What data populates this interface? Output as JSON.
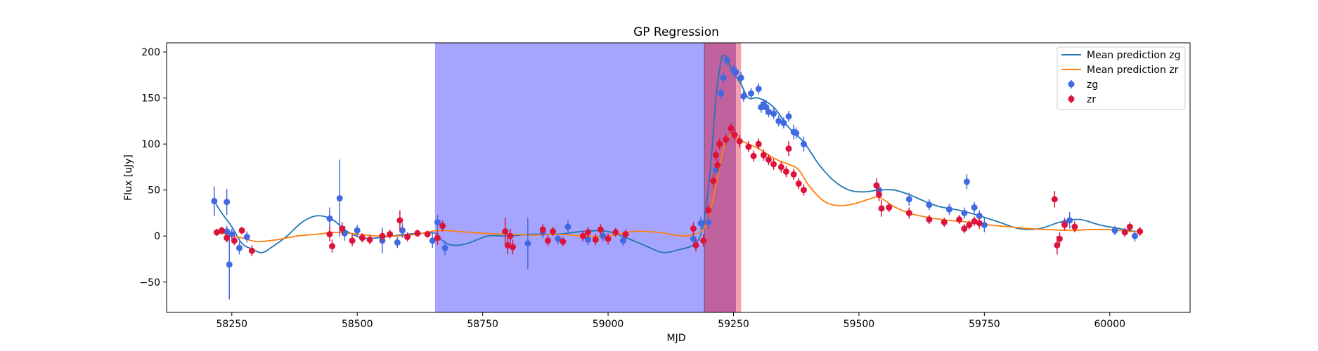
{
  "chart_data": {
    "type": "scatter",
    "title": "GP Regression",
    "xlabel": "MJD",
    "ylabel": "Flux [uJy]",
    "xlim": [
      58120,
      60160
    ],
    "ylim": [
      -83,
      210
    ],
    "xticks": [
      58250,
      58500,
      58750,
      59000,
      59250,
      59500,
      59750,
      60000
    ],
    "yticks": [
      -50,
      0,
      50,
      100,
      150,
      200
    ],
    "grid": false,
    "legend_position": "top-right",
    "legend": [
      "Mean prediction zg",
      "Mean prediction zr",
      "zg",
      "zr"
    ],
    "colors": {
      "zg_line": "#1f77b4",
      "zr_line": "#ff7f0e",
      "zg_points": "#4169e1",
      "zr_points": "#dc143c",
      "band_blue": "#a5a5ff",
      "band_red": "#c0629e",
      "band_pink": "#f4a0b0"
    },
    "shaded_regions": [
      {
        "x0": 58655,
        "x1": 59192,
        "color": "#a5a5ff"
      },
      {
        "x0": 59192,
        "x1": 59255,
        "color": "#c0629e"
      },
      {
        "x0": 59255,
        "x1": 59265,
        "color": "#f4a0b0"
      }
    ],
    "series": [
      {
        "name": "Mean prediction zg",
        "kind": "line",
        "x": [
          58215,
          58230,
          58250,
          58270,
          58290,
          58310,
          58330,
          58360,
          58390,
          58420,
          58450,
          58480,
          58510,
          58540,
          58570,
          58600,
          58630,
          58655,
          58670,
          58690,
          58720,
          58760,
          58800,
          58850,
          58900,
          58950,
          59000,
          59050,
          59080,
          59110,
          59140,
          59170,
          59185,
          59195,
          59205,
          59215,
          59225,
          59232,
          59240,
          59250,
          59265,
          59280,
          59300,
          59330,
          59360,
          59390,
          59420,
          59450,
          59480,
          59510,
          59540,
          59570,
          59600,
          59630,
          59660,
          59700,
          59740,
          59780,
          59820,
          59860,
          59900,
          59940,
          59980,
          60020,
          60050
        ],
        "y": [
          38,
          25,
          10,
          -8,
          -14,
          -18,
          -12,
          0,
          15,
          22,
          18,
          5,
          -2,
          -2,
          0,
          2,
          3,
          3,
          -5,
          -10,
          -8,
          0,
          0,
          2,
          2,
          5,
          5,
          -5,
          -12,
          -18,
          -15,
          -10,
          2,
          30,
          80,
          150,
          190,
          196,
          188,
          178,
          165,
          150,
          150,
          140,
          118,
          102,
          78,
          60,
          50,
          48,
          50,
          50,
          45,
          38,
          32,
          28,
          22,
          15,
          8,
          8,
          15,
          18,
          12,
          8,
          5
        ]
      },
      {
        "name": "Mean prediction zr",
        "kind": "line",
        "x": [
          58215,
          58240,
          58270,
          58300,
          58340,
          58380,
          58420,
          58460,
          58500,
          58540,
          58580,
          58620,
          58660,
          58700,
          58750,
          58800,
          58850,
          58900,
          58950,
          59000,
          59050,
          59100,
          59150,
          59185,
          59200,
          59215,
          59230,
          59245,
          59260,
          59280,
          59300,
          59320,
          59340,
          59360,
          59380,
          59400,
          59430,
          59460,
          59490,
          59520,
          59540,
          59570,
          59600,
          59640,
          59680,
          59720,
          59760,
          59800,
          59840,
          59880,
          59920,
          59960,
          60000,
          60040,
          60060
        ],
        "y": [
          4,
          2,
          -2,
          -6,
          -4,
          0,
          2,
          4,
          2,
          0,
          0,
          2,
          6,
          5,
          3,
          2,
          1,
          2,
          0,
          0,
          5,
          4,
          0,
          5,
          20,
          55,
          95,
          110,
          105,
          100,
          95,
          88,
          82,
          78,
          72,
          55,
          38,
          33,
          35,
          40,
          42,
          32,
          25,
          20,
          17,
          15,
          12,
          10,
          8,
          7,
          6,
          7,
          7,
          5,
          5
        ]
      },
      {
        "name": "zg",
        "kind": "errorbar",
        "points": [
          [
            58215,
            38,
            16
          ],
          [
            58240,
            37,
            14
          ],
          [
            58245,
            -31,
            38
          ],
          [
            58240,
            5,
            6
          ],
          [
            58250,
            2,
            6
          ],
          [
            58265,
            -13,
            7
          ],
          [
            58280,
            -1,
            6
          ],
          [
            58445,
            19,
            12
          ],
          [
            58465,
            41,
            42
          ],
          [
            58475,
            3,
            8
          ],
          [
            58500,
            6,
            6
          ],
          [
            58550,
            -5,
            14
          ],
          [
            58580,
            -7,
            6
          ],
          [
            58590,
            6,
            8
          ],
          [
            58650,
            -5,
            8
          ],
          [
            58660,
            15,
            8
          ],
          [
            58675,
            -13,
            8
          ],
          [
            58840,
            -8,
            28
          ],
          [
            58870,
            4,
            6
          ],
          [
            58900,
            -3,
            6
          ],
          [
            58920,
            10,
            7
          ],
          [
            58960,
            -4,
            6
          ],
          [
            58990,
            0,
            6
          ],
          [
            59030,
            -5,
            6
          ],
          [
            59170,
            -3,
            7
          ],
          [
            59185,
            14,
            7
          ],
          [
            59200,
            15,
            7
          ],
          [
            59215,
            72,
            6
          ],
          [
            59225,
            155,
            6
          ],
          [
            59230,
            172,
            6
          ],
          [
            59237,
            191,
            6
          ],
          [
            59250,
            180,
            6
          ],
          [
            59255,
            178,
            6
          ],
          [
            59265,
            172,
            6
          ],
          [
            59270,
            152,
            6
          ],
          [
            59285,
            155,
            6
          ],
          [
            59300,
            160,
            6
          ],
          [
            59305,
            140,
            6
          ],
          [
            59310,
            143,
            6
          ],
          [
            59315,
            140,
            8
          ],
          [
            59320,
            135,
            6
          ],
          [
            59330,
            133,
            6
          ],
          [
            59340,
            125,
            6
          ],
          [
            59350,
            123,
            6
          ],
          [
            59360,
            130,
            6
          ],
          [
            59370,
            113,
            8
          ],
          [
            59375,
            112,
            6
          ],
          [
            59390,
            100,
            8
          ],
          [
            59540,
            50,
            6
          ],
          [
            59600,
            40,
            7
          ],
          [
            59640,
            34,
            6
          ],
          [
            59680,
            29,
            6
          ],
          [
            59710,
            25,
            6
          ],
          [
            59715,
            59,
            8
          ],
          [
            59730,
            31,
            6
          ],
          [
            59740,
            22,
            6
          ],
          [
            59750,
            12,
            8
          ],
          [
            59910,
            14,
            6
          ],
          [
            59920,
            17,
            9
          ],
          [
            60010,
            6,
            5
          ],
          [
            60050,
            0,
            6
          ]
        ]
      },
      {
        "name": "zr",
        "kind": "errorbar",
        "points": [
          [
            58220,
            4,
            4
          ],
          [
            58230,
            6,
            4
          ],
          [
            58240,
            -2,
            5
          ],
          [
            58255,
            -5,
            5
          ],
          [
            58270,
            6,
            4
          ],
          [
            58290,
            -16,
            6
          ],
          [
            58445,
            2,
            8
          ],
          [
            58450,
            -11,
            7
          ],
          [
            58470,
            8,
            7
          ],
          [
            58490,
            -5,
            6
          ],
          [
            58510,
            -2,
            5
          ],
          [
            58525,
            -4,
            5
          ],
          [
            58550,
            0,
            6
          ],
          [
            58565,
            2,
            5
          ],
          [
            58585,
            17,
            11
          ],
          [
            58600,
            -1,
            5
          ],
          [
            58620,
            3,
            4
          ],
          [
            58640,
            2,
            4
          ],
          [
            58660,
            -2,
            8
          ],
          [
            58670,
            11,
            6
          ],
          [
            58795,
            5,
            15
          ],
          [
            58800,
            -10,
            10
          ],
          [
            58805,
            0,
            8
          ],
          [
            58810,
            -12,
            8
          ],
          [
            58870,
            7,
            6
          ],
          [
            58880,
            -5,
            6
          ],
          [
            58890,
            5,
            5
          ],
          [
            58910,
            -6,
            5
          ],
          [
            58950,
            0,
            6
          ],
          [
            58960,
            4,
            6
          ],
          [
            58975,
            -4,
            6
          ],
          [
            58985,
            7,
            6
          ],
          [
            59000,
            -3,
            6
          ],
          [
            59015,
            4,
            5
          ],
          [
            59035,
            2,
            5
          ],
          [
            59170,
            8,
            7
          ],
          [
            59175,
            -10,
            7
          ],
          [
            59190,
            -5,
            7
          ],
          [
            59200,
            28,
            6
          ],
          [
            59210,
            60,
            7
          ],
          [
            59215,
            88,
            6
          ],
          [
            59218,
            77,
            6
          ],
          [
            59222,
            100,
            6
          ],
          [
            59235,
            105,
            6
          ],
          [
            59245,
            117,
            6
          ],
          [
            59252,
            110,
            6
          ],
          [
            59262,
            103,
            7
          ],
          [
            59280,
            97,
            6
          ],
          [
            59290,
            87,
            6
          ],
          [
            59300,
            100,
            6
          ],
          [
            59310,
            88,
            6
          ],
          [
            59320,
            83,
            6
          ],
          [
            59330,
            78,
            6
          ],
          [
            59345,
            75,
            6
          ],
          [
            59355,
            70,
            6
          ],
          [
            59360,
            95,
            8
          ],
          [
            59370,
            67,
            6
          ],
          [
            59380,
            57,
            6
          ],
          [
            59390,
            50,
            6
          ],
          [
            59535,
            55,
            8
          ],
          [
            59540,
            45,
            7
          ],
          [
            59545,
            30,
            9
          ],
          [
            59560,
            31,
            5
          ],
          [
            59600,
            25,
            6
          ],
          [
            59640,
            18,
            5
          ],
          [
            59670,
            15,
            5
          ],
          [
            59700,
            18,
            5
          ],
          [
            59710,
            8,
            5
          ],
          [
            59720,
            12,
            5
          ],
          [
            59730,
            16,
            5
          ],
          [
            59740,
            14,
            6
          ],
          [
            59890,
            40,
            9
          ],
          [
            59895,
            -10,
            10
          ],
          [
            59900,
            -3,
            7
          ],
          [
            59910,
            12,
            6
          ],
          [
            59930,
            10,
            6
          ],
          [
            60030,
            4,
            5
          ],
          [
            60040,
            10,
            5
          ],
          [
            60060,
            5,
            5
          ]
        ]
      }
    ]
  }
}
